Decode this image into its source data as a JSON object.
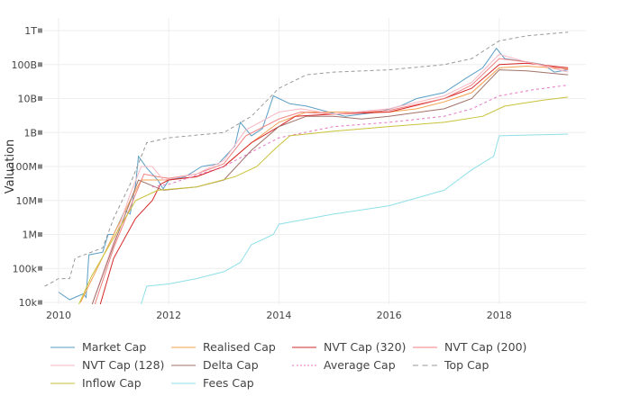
{
  "chart_data": {
    "type": "line",
    "ylabel": "Valuation",
    "yscale": "log",
    "ylim": [
      10000,
      1000000000000
    ],
    "xlim": [
      2009.7,
      2019.6
    ],
    "grid": true,
    "legend_position": "bottom",
    "x_ticks": [
      {
        "value": 2010,
        "label": "2010"
      },
      {
        "value": 2012,
        "label": "2012"
      },
      {
        "value": 2014,
        "label": "2014"
      },
      {
        "value": 2016,
        "label": "2016"
      },
      {
        "value": 2018,
        "label": "2018"
      }
    ],
    "y_ticks": [
      {
        "value": 1000000000000.0,
        "label": "1T"
      },
      {
        "value": 100000000000.0,
        "label": "100B"
      },
      {
        "value": 10000000000.0,
        "label": "10B"
      },
      {
        "value": 1000000000.0,
        "label": "1B"
      },
      {
        "value": 100000000.0,
        "label": "100M"
      },
      {
        "value": 10000000.0,
        "label": "10M"
      },
      {
        "value": 1000000.0,
        "label": "1M"
      },
      {
        "value": 100000.0,
        "label": "100k"
      },
      {
        "value": 10000.0,
        "label": "10k"
      }
    ],
    "series": [
      {
        "name": "Market Cap",
        "color": "#5b9ec6",
        "dash": "solid",
        "points": [
          [
            2010.0,
            20000
          ],
          [
            2010.2,
            12000
          ],
          [
            2010.45,
            18000
          ],
          [
            2010.5,
            14000
          ],
          [
            2010.55,
            250000
          ],
          [
            2010.8,
            300000
          ],
          [
            2010.9,
            1000000
          ],
          [
            2011.0,
            1000000
          ],
          [
            2011.2,
            5000000
          ],
          [
            2011.3,
            4000000
          ],
          [
            2011.4,
            30000000
          ],
          [
            2011.45,
            200000000
          ],
          [
            2011.6,
            90000000
          ],
          [
            2011.8,
            40000000
          ],
          [
            2011.9,
            22000000
          ],
          [
            2012.0,
            40000000
          ],
          [
            2012.3,
            50000000
          ],
          [
            2012.6,
            100000000
          ],
          [
            2012.9,
            120000000
          ],
          [
            2013.2,
            400000000
          ],
          [
            2013.3,
            2000000000
          ],
          [
            2013.5,
            800000000
          ],
          [
            2013.7,
            1300000000
          ],
          [
            2013.9,
            12000000000
          ],
          [
            2014.2,
            7000000000
          ],
          [
            2014.5,
            6000000000
          ],
          [
            2014.9,
            4000000000
          ],
          [
            2015.2,
            3000000000
          ],
          [
            2015.8,
            4000000000
          ],
          [
            2016.2,
            6000000000
          ],
          [
            2016.5,
            10000000000
          ],
          [
            2017.0,
            15000000000
          ],
          [
            2017.4,
            40000000000
          ],
          [
            2017.7,
            80000000000
          ],
          [
            2017.95,
            300000000000
          ],
          [
            2018.1,
            150000000000
          ],
          [
            2018.5,
            120000000000
          ],
          [
            2018.8,
            100000000000
          ],
          [
            2019.0,
            60000000000
          ],
          [
            2019.25,
            70000000000
          ]
        ]
      },
      {
        "name": "Realised Cap",
        "color": "#f5a050",
        "dash": "solid",
        "points": [
          [
            2010.4,
            10000
          ],
          [
            2010.7,
            100000
          ],
          [
            2011.0,
            1000000
          ],
          [
            2011.3,
            10000000
          ],
          [
            2011.5,
            40000000
          ],
          [
            2012.0,
            40000000
          ],
          [
            2012.5,
            50000000
          ],
          [
            2013.0,
            100000000
          ],
          [
            2013.5,
            500000000
          ],
          [
            2014.0,
            2000000000
          ],
          [
            2014.5,
            4000000000
          ],
          [
            2015.0,
            4000000000
          ],
          [
            2016.0,
            4000000000
          ],
          [
            2016.5,
            5000000000
          ],
          [
            2017.0,
            8000000000
          ],
          [
            2017.5,
            15000000000
          ],
          [
            2018.0,
            80000000000
          ],
          [
            2018.5,
            90000000000
          ],
          [
            2019.25,
            75000000000
          ]
        ]
      },
      {
        "name": "NVT Cap (320)",
        "color": "#d62728",
        "dash": "solid",
        "points": [
          [
            2010.75,
            8000
          ],
          [
            2011.0,
            200000
          ],
          [
            2011.4,
            3000000
          ],
          [
            2011.7,
            10000000
          ],
          [
            2011.85,
            30000000
          ],
          [
            2012.0,
            40000000
          ],
          [
            2012.5,
            50000000
          ],
          [
            2013.0,
            100000000
          ],
          [
            2013.5,
            500000000
          ],
          [
            2014.0,
            1500000000
          ],
          [
            2014.3,
            3000000000
          ],
          [
            2015.0,
            3500000000
          ],
          [
            2016.0,
            4000000000
          ],
          [
            2017.0,
            10000000000
          ],
          [
            2017.5,
            20000000000
          ],
          [
            2018.0,
            100000000000
          ],
          [
            2018.5,
            110000000000
          ],
          [
            2019.25,
            80000000000
          ]
        ]
      },
      {
        "name": "NVT Cap (200)",
        "color": "#f08080",
        "dash": "solid",
        "points": [
          [
            2010.65,
            8000
          ],
          [
            2011.0,
            400000
          ],
          [
            2011.35,
            10000000
          ],
          [
            2011.55,
            60000000
          ],
          [
            2011.8,
            50000000
          ],
          [
            2012.0,
            45000000
          ],
          [
            2012.5,
            60000000
          ],
          [
            2013.0,
            120000000
          ],
          [
            2013.4,
            800000000
          ],
          [
            2014.0,
            2500000000
          ],
          [
            2014.4,
            4000000000
          ],
          [
            2015.0,
            3500000000
          ],
          [
            2016.0,
            4500000000
          ],
          [
            2017.0,
            10000000000
          ],
          [
            2017.5,
            25000000000
          ],
          [
            2018.0,
            150000000000
          ],
          [
            2018.5,
            120000000000
          ],
          [
            2019.25,
            70000000000
          ]
        ]
      },
      {
        "name": "NVT Cap (128)",
        "color": "#f7b6c2",
        "dash": "solid",
        "points": [
          [
            2010.6,
            8000
          ],
          [
            2011.0,
            600000
          ],
          [
            2011.3,
            15000000
          ],
          [
            2011.5,
            100000000
          ],
          [
            2011.7,
            100000000
          ],
          [
            2011.9,
            40000000
          ],
          [
            2012.5,
            60000000
          ],
          [
            2013.0,
            150000000
          ],
          [
            2013.4,
            1200000000
          ],
          [
            2014.0,
            4000000000
          ],
          [
            2014.4,
            5000000000
          ],
          [
            2015.0,
            3500000000
          ],
          [
            2016.0,
            5000000000
          ],
          [
            2017.0,
            12000000000
          ],
          [
            2017.5,
            30000000000
          ],
          [
            2018.0,
            200000000000
          ],
          [
            2018.5,
            120000000000
          ],
          [
            2019.25,
            60000000000
          ]
        ]
      },
      {
        "name": "Delta Cap",
        "color": "#a0726a",
        "dash": "solid",
        "points": [
          [
            2010.6,
            8000
          ],
          [
            2011.0,
            500000
          ],
          [
            2011.45,
            40000000
          ],
          [
            2011.9,
            20000000
          ],
          [
            2012.5,
            25000000
          ],
          [
            2013.0,
            40000000
          ],
          [
            2013.5,
            300000000
          ],
          [
            2014.0,
            1500000000
          ],
          [
            2014.5,
            3000000000
          ],
          [
            2015.0,
            3000000000
          ],
          [
            2015.5,
            2500000000
          ],
          [
            2016.0,
            3000000000
          ],
          [
            2017.0,
            5000000000
          ],
          [
            2017.5,
            10000000000
          ],
          [
            2018.0,
            70000000000
          ],
          [
            2018.5,
            65000000000
          ],
          [
            2019.25,
            50000000000
          ]
        ]
      },
      {
        "name": "Average Cap",
        "color": "#e377c2",
        "dash": "dot",
        "points": [
          [
            2011.7,
            25000000
          ],
          [
            2012.0,
            30000000
          ],
          [
            2013.0,
            100000000
          ],
          [
            2014.0,
            700000000
          ],
          [
            2015.0,
            1500000000
          ],
          [
            2016.0,
            2000000000
          ],
          [
            2017.0,
            3000000000
          ],
          [
            2017.5,
            5000000000
          ],
          [
            2018.0,
            12000000000
          ],
          [
            2018.6,
            18000000000
          ],
          [
            2019.25,
            25000000000
          ]
        ]
      },
      {
        "name": "Top Cap",
        "color": "#999999",
        "dash": "dash",
        "points": [
          [
            2009.75,
            30000
          ],
          [
            2010.0,
            50000
          ],
          [
            2010.2,
            50000
          ],
          [
            2010.3,
            200000
          ],
          [
            2010.8,
            400000
          ],
          [
            2011.0,
            3000000
          ],
          [
            2011.3,
            30000000
          ],
          [
            2011.6,
            500000000
          ],
          [
            2012.0,
            700000000
          ],
          [
            2013.0,
            1000000000
          ],
          [
            2013.5,
            3000000000
          ],
          [
            2014.0,
            20000000000
          ],
          [
            2014.5,
            50000000000
          ],
          [
            2015.0,
            60000000000
          ],
          [
            2016.0,
            70000000000
          ],
          [
            2017.0,
            100000000000
          ],
          [
            2017.5,
            150000000000
          ],
          [
            2018.0,
            500000000000
          ],
          [
            2018.5,
            700000000000
          ],
          [
            2019.25,
            900000000000
          ]
        ]
      },
      {
        "name": "Inflow Cap",
        "color": "#c9c23a",
        "dash": "solid",
        "points": [
          [
            2010.3,
            5000
          ],
          [
            2010.6,
            60000
          ],
          [
            2011.0,
            800000
          ],
          [
            2011.4,
            10000000
          ],
          [
            2011.8,
            20000000
          ],
          [
            2012.5,
            25000000
          ],
          [
            2013.2,
            50000000
          ],
          [
            2013.6,
            100000000
          ],
          [
            2013.9,
            300000000
          ],
          [
            2014.2,
            800000000
          ],
          [
            2015.0,
            1100000000
          ],
          [
            2016.0,
            1500000000
          ],
          [
            2017.0,
            2000000000
          ],
          [
            2017.7,
            3000000000
          ],
          [
            2018.1,
            6000000000
          ],
          [
            2018.8,
            9000000000
          ],
          [
            2019.25,
            11000000000
          ]
        ]
      },
      {
        "name": "Fees Cap",
        "color": "#8fe0e8",
        "dash": "solid",
        "points": [
          [
            2011.45,
            5000
          ],
          [
            2011.6,
            30000
          ],
          [
            2012.0,
            35000
          ],
          [
            2012.5,
            50000
          ],
          [
            2013.0,
            80000
          ],
          [
            2013.3,
            150000
          ],
          [
            2013.5,
            500000
          ],
          [
            2013.9,
            1000000
          ],
          [
            2014.0,
            2000000
          ],
          [
            2015.0,
            4000000
          ],
          [
            2016.0,
            7000000
          ],
          [
            2017.0,
            20000000
          ],
          [
            2017.5,
            80000000
          ],
          [
            2017.9,
            200000000
          ],
          [
            2018.0,
            800000000
          ],
          [
            2019.25,
            900000000
          ]
        ]
      }
    ]
  }
}
